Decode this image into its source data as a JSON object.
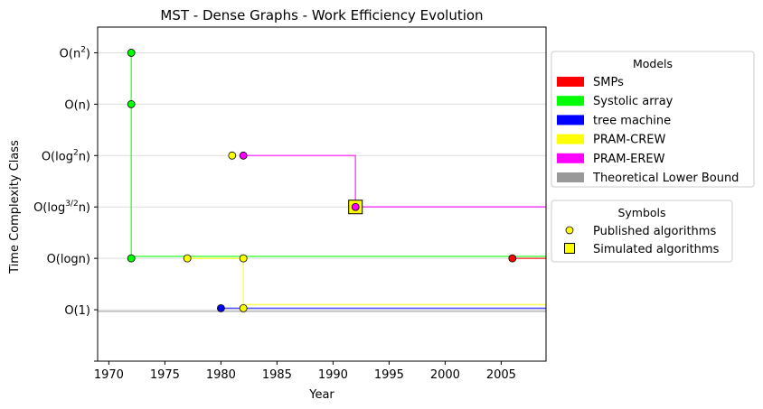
{
  "chart_data": {
    "type": "line",
    "title": "MST - Dense Graphs - Work Efficiency Evolution",
    "xlabel": "Year",
    "ylabel": "Time Complexity Class",
    "xlim": [
      1969,
      2009
    ],
    "x_ticks": [
      1970,
      1975,
      1980,
      1985,
      1990,
      1995,
      2000,
      2005
    ],
    "ylim": [
      -1,
      5.5
    ],
    "y_ticks": [
      {
        "v": 0,
        "base": "O(1)",
        "sup": ""
      },
      {
        "v": 1,
        "base": "O(logn)",
        "sup": ""
      },
      {
        "v": 2,
        "base": "O(log",
        "sup": "3/2",
        "tail": "n)"
      },
      {
        "v": 3,
        "base": "O(log",
        "sup": "2",
        "tail": "n)"
      },
      {
        "v": 4,
        "base": "O(n)",
        "sup": ""
      },
      {
        "v": 5,
        "base": "O(n",
        "sup": "2",
        "tail": ")"
      }
    ],
    "grid": "horizontal",
    "series": [
      {
        "name": "SMPs",
        "color": "#ff0000",
        "steps": [
          [
            2006,
            1
          ],
          [
            2009,
            1
          ]
        ],
        "points": [
          [
            2006,
            1,
            "published"
          ]
        ]
      },
      {
        "name": "Systolic array",
        "color": "#00ff00",
        "steps": [
          [
            1972,
            5
          ],
          [
            1972,
            4
          ],
          [
            1972,
            1.04
          ],
          [
            2009,
            1.04
          ]
        ],
        "points": [
          [
            1972,
            5,
            "published"
          ],
          [
            1972,
            4,
            "published"
          ],
          [
            1972,
            1,
            "published"
          ]
        ]
      },
      {
        "name": "tree machine",
        "color": "#0000ff",
        "steps": [
          [
            1980,
            0.03
          ],
          [
            1982,
            0.03
          ],
          [
            2009,
            0.03
          ]
        ],
        "points": [
          [
            1980,
            0.03,
            "published"
          ]
        ]
      },
      {
        "name": "PRAM-CREW",
        "color": "#ffff00",
        "steps": [
          [
            1977,
            1
          ],
          [
            1982,
            1
          ],
          [
            1982,
            0.1
          ],
          [
            2009,
            0.1
          ]
        ],
        "points": [
          [
            1977,
            1,
            "published"
          ],
          [
            1982,
            1,
            "published"
          ],
          [
            1982,
            0.03,
            "published"
          ],
          [
            1981,
            3,
            "published"
          ]
        ]
      },
      {
        "name": "PRAM-EREW",
        "color": "#ff00ff",
        "steps": [
          [
            1982,
            3
          ],
          [
            1992,
            3
          ],
          [
            1992,
            2
          ],
          [
            2009,
            2
          ]
        ],
        "points": [
          [
            1982,
            3,
            "published"
          ],
          [
            1992,
            2,
            "simulated"
          ],
          [
            1992,
            2,
            "published"
          ]
        ]
      },
      {
        "name": "Theoretical Lower Bound",
        "color": "#999999",
        "steps": [
          [
            1969,
            -0.03
          ],
          [
            2009,
            -0.03
          ]
        ],
        "points": []
      }
    ],
    "legend_models": {
      "title": "Models",
      "placement": "right-top",
      "items": [
        {
          "label": "SMPs",
          "color": "#ff0000"
        },
        {
          "label": "Systolic array",
          "color": "#00ff00"
        },
        {
          "label": "tree machine",
          "color": "#0000ff"
        },
        {
          "label": "PRAM-CREW",
          "color": "#ffff00"
        },
        {
          "label": "PRAM-EREW",
          "color": "#ff00ff"
        },
        {
          "label": "Theoretical Lower Bound",
          "color": "#999999"
        }
      ]
    },
    "legend_symbols": {
      "title": "Symbols",
      "placement": "right-middle",
      "items": [
        {
          "label": "Published algorithms",
          "marker": "circle",
          "color": "#ffff00"
        },
        {
          "label": "Simulated algorithms",
          "marker": "square",
          "color": "#ffff00"
        }
      ]
    }
  }
}
